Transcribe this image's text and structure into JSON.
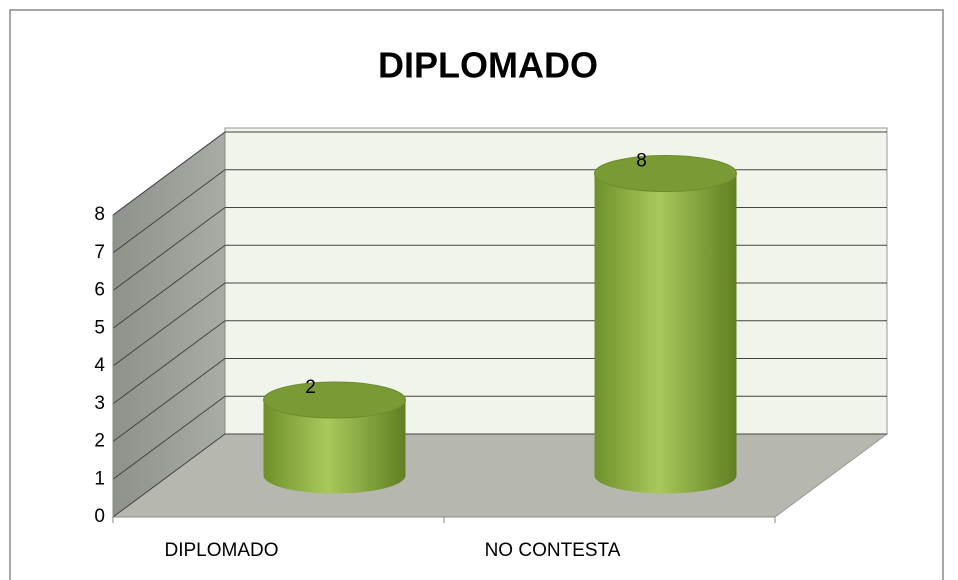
{
  "chart_data": {
    "type": "bar",
    "title": "DIPLOMADO",
    "categories": [
      "DIPLOMADO",
      "NO CONTESTA"
    ],
    "values": [
      2,
      8
    ],
    "color": "#8fb13f",
    "ylim": [
      0,
      8
    ],
    "yticks": [
      0,
      1,
      2,
      3,
      4,
      5,
      6,
      7,
      8
    ],
    "grid": true
  }
}
